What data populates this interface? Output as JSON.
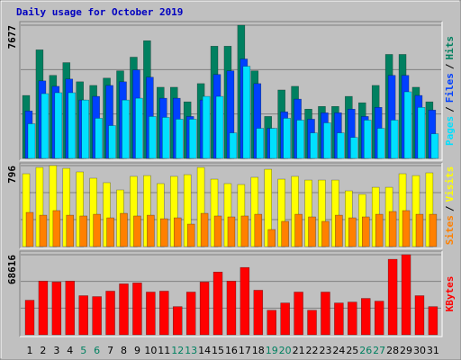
{
  "chart_data": {
    "type": "bar",
    "title": "Daily usage for October 2019",
    "title_color": "#0000c0",
    "categories": [
      "1",
      "2",
      "3",
      "4",
      "5",
      "6",
      "7",
      "8",
      "9",
      "10",
      "11",
      "12",
      "13",
      "14",
      "15",
      "16",
      "17",
      "18",
      "19",
      "20",
      "21",
      "22",
      "23",
      "24",
      "25",
      "26",
      "27",
      "28",
      "29",
      "30",
      "31"
    ],
    "weekend": [
      false,
      false,
      false,
      false,
      true,
      true,
      false,
      false,
      false,
      false,
      false,
      true,
      true,
      false,
      false,
      false,
      false,
      false,
      true,
      true,
      false,
      false,
      false,
      false,
      false,
      true,
      true,
      false,
      false,
      false,
      false
    ],
    "weekend_color": "#008060",
    "separator": "/",
    "panels": [
      {
        "ylim": [
          0,
          7677
        ],
        "yticks": [
          7677
        ],
        "series": [
          {
            "name": "Hits",
            "color": "#008060",
            "values": [
              3628,
              6257,
              4785,
              5521,
              4417,
              4206,
              4627,
              5048,
              5836,
              6783,
              4101,
              4101,
              3260,
              4312,
              6467,
              6467,
              7677,
              5048,
              2419,
              3944,
              4154,
              2839,
              2997,
              2997,
              3575,
              3207,
              4206,
              5994,
              5994,
              4101,
              3260
            ]
          },
          {
            "name": "Files",
            "color": "#0040ff",
            "values": [
              2734,
              4469,
              4154,
              4574,
              3365,
              3575,
              4206,
              4417,
              5100,
              4680,
              3470,
              3470,
              2419,
              3365,
              4837,
              5048,
              5731,
              4312,
              1735,
              2682,
              3418,
              2261,
              2629,
              2629,
              2839,
              2419,
              2944,
              4785,
              4785,
              3628,
              2787
            ]
          },
          {
            "name": "Pages",
            "color": "#00e0ff",
            "values": [
              1998,
              3733,
              3786,
              3786,
              3365,
              2314,
              1893,
              3365,
              3470,
              2419,
              2366,
              2261,
              2261,
              3575,
              3575,
              1472,
              5311,
              1735,
              1735,
              2314,
              2208,
              1472,
              2051,
              1472,
              1209,
              2208,
              1735,
              2208,
              3838,
              2944,
              1420
            ]
          }
        ]
      },
      {
        "ylim": [
          0,
          796
        ],
        "yticks": [
          796
        ],
        "series": [
          {
            "name": "Visits",
            "color": "#ffff00",
            "values": [
              716,
              778,
              796,
              769,
              734,
              672,
              628,
              557,
              690,
              698,
              619,
              690,
              707,
              778,
              663,
              619,
              610,
              681,
              760,
              663,
              690,
              654,
              654,
              654,
              548,
              513,
              583,
              583,
              716,
              698,
              725
            ]
          },
          {
            "name": "Sites",
            "color": "#ff8000",
            "values": [
              336,
              309,
              354,
              309,
              301,
              318,
              283,
              327,
              301,
              309,
              274,
              283,
              221,
              327,
              301,
              292,
              301,
              318,
              168,
              248,
              318,
              292,
              248,
              309,
              283,
              292,
              318,
              345,
              354,
              318,
              318
            ]
          }
        ]
      },
      {
        "ylim": [
          0,
          68616
        ],
        "yticks": [
          68616
        ],
        "series": [
          {
            "name": "KBytes",
            "color": "#ff0000",
            "values": [
              29629,
              46002,
              45223,
              46002,
              33527,
              32747,
              37426,
              43663,
              44443,
              36646,
              37426,
              24171,
              36646,
              45223,
              53799,
              46002,
              57698,
              38205,
              21052,
              27290,
              36646,
              21052,
              36646,
              27290,
              28069,
              31188,
              28849,
              64715,
              68616,
              33527,
              24171
            ]
          }
        ]
      }
    ]
  }
}
